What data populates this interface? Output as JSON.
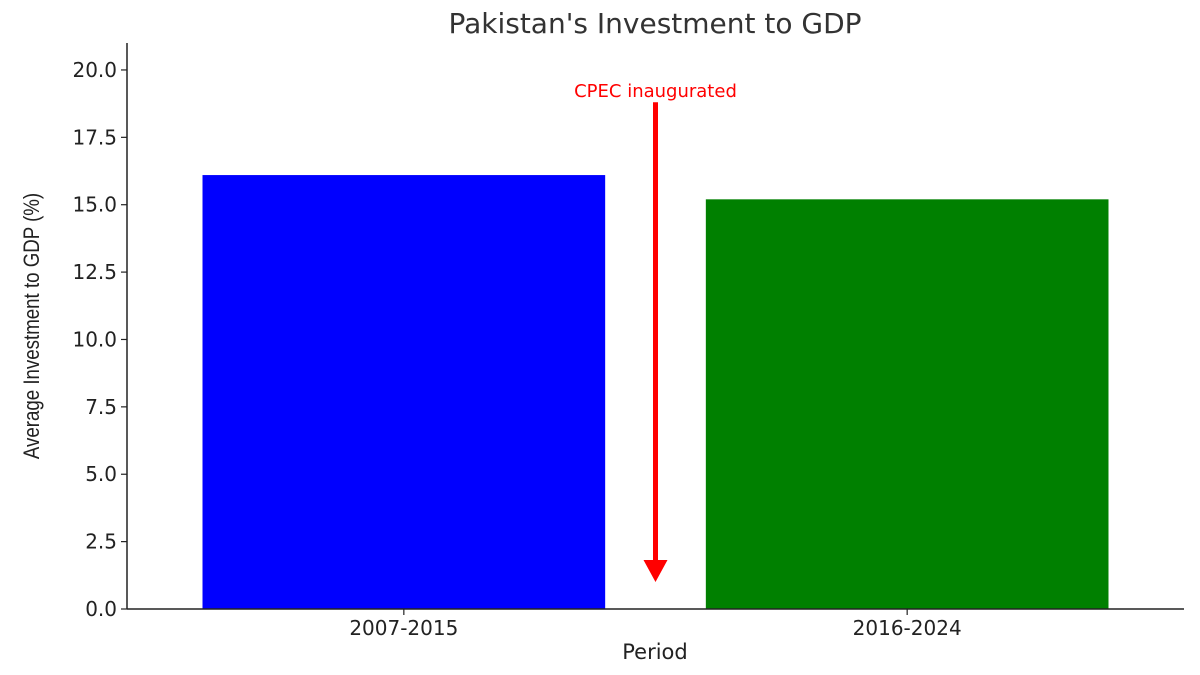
{
  "chart_data": {
    "type": "bar",
    "title": "Pakistan's Investment to GDP",
    "xlabel": "Period",
    "ylabel": "Average Investment to GDP (%)",
    "categories": [
      "2007-2015",
      "2016-2024"
    ],
    "values": [
      16.1,
      15.2
    ],
    "colors": [
      "#0000ff",
      "#008000"
    ],
    "ylim": [
      0,
      21
    ],
    "yticks": [
      0,
      2.5,
      5,
      7.5,
      10,
      12.5,
      15,
      17.5,
      20
    ],
    "ytick_labels": [
      "0.0",
      "2.5",
      "5.0",
      "7.5",
      "10.0",
      "12.5",
      "15.0",
      "17.5",
      "20.0"
    ],
    "grid": false,
    "annotation": {
      "text": "CPEC inaugurated",
      "color": "#ff0000",
      "arrow_from_y": 18.8,
      "arrow_to_y": 1.0
    }
  }
}
